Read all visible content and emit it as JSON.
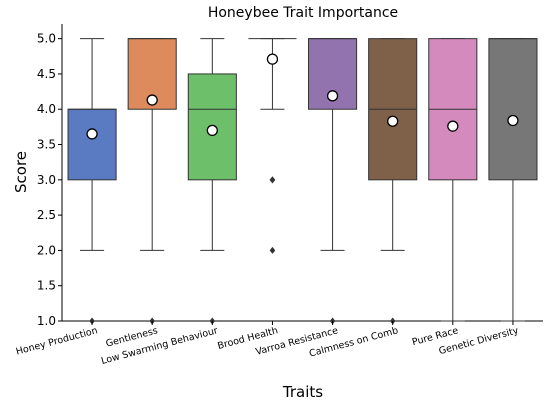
{
  "chart_data": {
    "type": "box",
    "title": "Honeybee Trait Importance",
    "xlabel": "Traits",
    "ylabel": "Score",
    "ylim": [
      1.0,
      5.0
    ],
    "yticks": [
      "1.0",
      "1.5",
      "2.0",
      "2.5",
      "3.0",
      "3.5",
      "4.0",
      "4.5",
      "5.0"
    ],
    "grid": false,
    "legend": "none",
    "categories": [
      "Honey Production",
      "Gentleness",
      "Low Swarming Behaviour",
      "Brood Health",
      "Varroa Resistance",
      "Calmness on Comb",
      "Pure Race",
      "Genetic Diversity"
    ],
    "boxes": [
      {
        "whisker_low": 2.0,
        "q1": 3.0,
        "median": 4.0,
        "q3": 4.0,
        "whisker_high": 5.0,
        "mean": 3.65,
        "outliers": [
          1.0
        ],
        "color": "#5a7bc1"
      },
      {
        "whisker_low": 2.0,
        "q1": 4.0,
        "median": 5.0,
        "q3": 5.0,
        "whisker_high": 5.0,
        "mean": 4.13,
        "outliers": [
          1.0
        ],
        "color": "#dd8a5c"
      },
      {
        "whisker_low": 2.0,
        "q1": 3.0,
        "median": 4.0,
        "q3": 4.5,
        "whisker_high": 5.0,
        "mean": 3.7,
        "outliers": [
          1.0
        ],
        "color": "#6dbf6a"
      },
      {
        "whisker_low": 4.0,
        "q1": 5.0,
        "median": 5.0,
        "q3": 5.0,
        "whisker_high": 5.0,
        "mean": 4.71,
        "outliers": [
          3.0,
          3.0,
          2.0
        ],
        "color": "#c95b5b"
      },
      {
        "whisker_low": 2.0,
        "q1": 4.0,
        "median": 5.0,
        "q3": 5.0,
        "whisker_high": 5.0,
        "mean": 4.19,
        "outliers": [
          1.0
        ],
        "color": "#9373ae"
      },
      {
        "whisker_low": 2.0,
        "q1": 3.0,
        "median": 4.0,
        "q3": 5.0,
        "whisker_high": 5.0,
        "mean": 3.83,
        "outliers": [
          1.0
        ],
        "color": "#7f6048"
      },
      {
        "whisker_low": 1.0,
        "q1": 3.0,
        "median": 4.0,
        "q3": 5.0,
        "whisker_high": 5.0,
        "mean": 3.76,
        "outliers": [],
        "color": "#d48abd"
      },
      {
        "whisker_low": 1.0,
        "q1": 3.0,
        "median": 5.0,
        "q3": 5.0,
        "whisker_high": 5.0,
        "mean": 3.84,
        "outliers": [],
        "color": "#777777"
      }
    ]
  }
}
